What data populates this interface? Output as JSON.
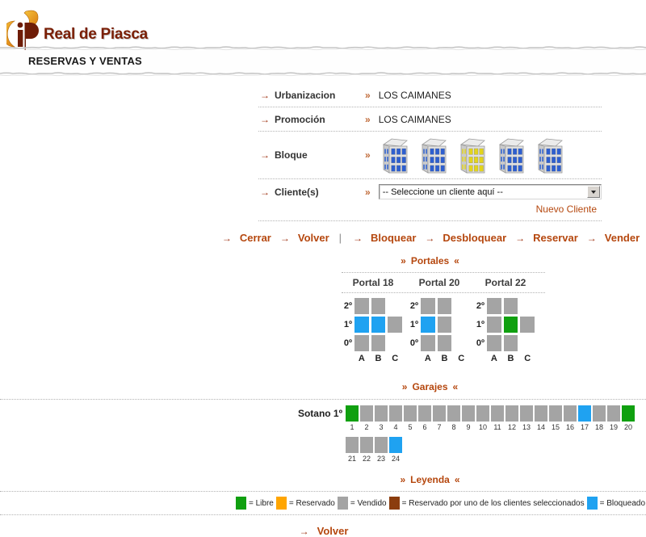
{
  "colors": {
    "libre": "#10A010",
    "reservado": "#FFA500",
    "vendido": "#A4A4A4",
    "reservado_cliente": "#8B3D0E",
    "bloqueado": "#1FA2F1",
    "accent": "#B5470E",
    "bullet_red": "#9C2E0C",
    "window_blue": "#2E5FCF",
    "window_yellow": "#E2D41E",
    "brand_maroon": "#7A1F06"
  },
  "markers": {
    "bullet": "→",
    "value": "»",
    "head_left": "»",
    "head_right": "«"
  },
  "header": {
    "brand": "Real de Piasca",
    "title": "RESERVAS Y VENTAS"
  },
  "form": {
    "rows": [
      {
        "label": "Urbanizacion",
        "value": "LOS CAIMANES"
      },
      {
        "label": "Promoción",
        "value": "LOS CAIMANES"
      }
    ],
    "bloque_label": "Bloque",
    "buildings": [
      {
        "id": "bloque-1",
        "window_color": "blue",
        "selected": false
      },
      {
        "id": "bloque-2",
        "window_color": "blue",
        "selected": false
      },
      {
        "id": "bloque-3",
        "window_color": "yellow",
        "selected": true
      },
      {
        "id": "bloque-4",
        "window_color": "blue",
        "selected": false
      },
      {
        "id": "bloque-5",
        "window_color": "blue",
        "selected": false
      }
    ],
    "cliente_label": "Cliente(s)",
    "cliente_selected": "-- Seleccione un cliente aquí --",
    "nuevo_cliente": "Nuevo Cliente"
  },
  "actions": {
    "group1": [
      "Cerrar",
      "Volver"
    ],
    "separator": "|",
    "group2": [
      "Bloquear",
      "Desbloquear",
      "Reservar",
      "Vender"
    ]
  },
  "portales": {
    "title": "Portales",
    "portals": [
      {
        "name": "Portal 18",
        "columns": [
          "A",
          "B",
          "C"
        ],
        "floors": [
          {
            "label": "2º",
            "cells": [
              "vendido",
              "vendido",
              null
            ]
          },
          {
            "label": "1º",
            "cells": [
              "bloqueado",
              "bloqueado",
              "vendido"
            ]
          },
          {
            "label": "0º",
            "cells": [
              "vendido",
              "vendido",
              null
            ]
          }
        ]
      },
      {
        "name": "Portal 20",
        "columns": [
          "A",
          "B",
          "C"
        ],
        "floors": [
          {
            "label": "2º",
            "cells": [
              "vendido",
              "vendido",
              null
            ]
          },
          {
            "label": "1º",
            "cells": [
              "bloqueado",
              "vendido",
              null
            ]
          },
          {
            "label": "0º",
            "cells": [
              "vendido",
              "vendido",
              null
            ]
          }
        ]
      },
      {
        "name": "Portal 22",
        "columns": [
          "A",
          "B",
          "C"
        ],
        "floors": [
          {
            "label": "2º",
            "cells": [
              "vendido",
              "vendido",
              null
            ]
          },
          {
            "label": "1º",
            "cells": [
              "vendido",
              "libre",
              "vendido"
            ]
          },
          {
            "label": "0º",
            "cells": [
              "vendido",
              "vendido",
              null
            ]
          }
        ]
      }
    ]
  },
  "garajes": {
    "title": "Garajes",
    "rows": [
      {
        "label": "Sotano 1º",
        "spaces": [
          {
            "num": "1",
            "status": "libre"
          },
          {
            "num": "2",
            "status": "vendido"
          },
          {
            "num": "3",
            "status": "vendido"
          },
          {
            "num": "4",
            "status": "vendido"
          },
          {
            "num": "5",
            "status": "vendido"
          },
          {
            "num": "6",
            "status": "vendido"
          },
          {
            "num": "7",
            "status": "vendido"
          },
          {
            "num": "8",
            "status": "vendido"
          },
          {
            "num": "9",
            "status": "vendido"
          },
          {
            "num": "10",
            "status": "vendido"
          },
          {
            "num": "11",
            "status": "vendido"
          },
          {
            "num": "12",
            "status": "vendido"
          },
          {
            "num": "13",
            "status": "vendido"
          },
          {
            "num": "14",
            "status": "vendido"
          },
          {
            "num": "15",
            "status": "vendido"
          },
          {
            "num": "16",
            "status": "vendido"
          },
          {
            "num": "17",
            "status": "bloqueado"
          },
          {
            "num": "18",
            "status": "vendido"
          },
          {
            "num": "19",
            "status": "vendido"
          },
          {
            "num": "20",
            "status": "libre"
          }
        ]
      },
      {
        "label": "",
        "spaces": [
          {
            "num": "21",
            "status": "vendido"
          },
          {
            "num": "22",
            "status": "vendido"
          },
          {
            "num": "23",
            "status": "vendido"
          },
          {
            "num": "24",
            "status": "bloqueado"
          }
        ]
      }
    ]
  },
  "leyenda": {
    "title": "Leyenda",
    "items": [
      {
        "status": "libre",
        "label": "= Libre"
      },
      {
        "status": "reservado",
        "label": "= Reservado"
      },
      {
        "status": "vendido",
        "label": "= Vendido"
      },
      {
        "status": "reservado_cliente",
        "label": "= Reservado por uno de los clientes seleccionados"
      },
      {
        "status": "bloqueado",
        "label": "= Bloqueado"
      }
    ]
  },
  "footer": {
    "volver": "Volver"
  }
}
